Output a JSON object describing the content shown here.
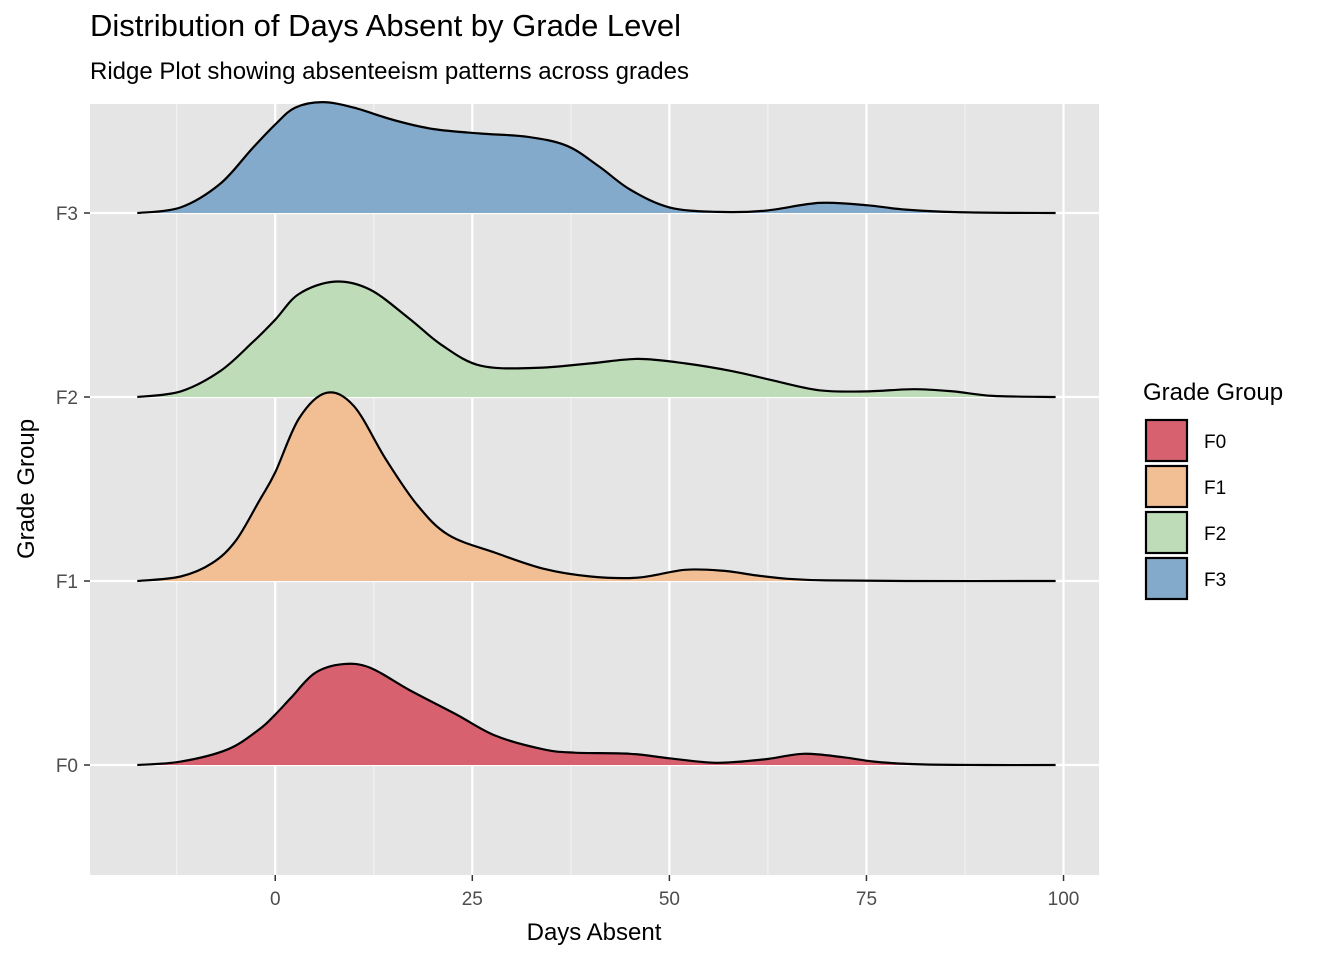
{
  "chart_data": {
    "type": "area",
    "subtype": "ridgeline",
    "title": "Distribution of Days Absent by Grade Level",
    "subtitle": "Ridge Plot showing absenteeism patterns across grades",
    "xlabel": "Days Absent",
    "ylabel": "Grade Group",
    "xlim": [
      -23.5,
      104.5
    ],
    "x_ticks": [
      0,
      25,
      50,
      75,
      100
    ],
    "x_tick_labels": [
      "0",
      "25",
      "50",
      "75",
      "100"
    ],
    "categories": [
      "F0",
      "F1",
      "F2",
      "F3"
    ],
    "grid": true,
    "legend": {
      "title": "Grade Group",
      "position": "right",
      "entries": [
        "F0",
        "F1",
        "F2",
        "F3"
      ]
    },
    "series": [
      {
        "name": "F0",
        "color": "#D7616F",
        "x": [
          -17.5,
          -12,
          -6,
          -2,
          0,
          2,
          5,
          8.5,
          12,
          17,
          23,
          28,
          34,
          38,
          45,
          50,
          56,
          62,
          67,
          72,
          76,
          82,
          90,
          99
        ],
        "y": [
          0,
          0.03,
          0.14,
          0.32,
          0.45,
          0.6,
          0.82,
          0.9,
          0.87,
          0.67,
          0.45,
          0.26,
          0.14,
          0.11,
          0.1,
          0.06,
          0.02,
          0.05,
          0.1,
          0.07,
          0.03,
          0.005,
          0,
          0
        ]
      },
      {
        "name": "F1",
        "color": "#F2BE94",
        "x": [
          -17.5,
          -12,
          -8,
          -5,
          -2,
          0,
          3,
          6.5,
          10,
          14,
          18,
          22,
          28,
          34,
          40,
          46,
          52,
          57,
          61,
          65,
          70,
          80,
          99
        ],
        "y": [
          0,
          0.04,
          0.16,
          0.36,
          0.72,
          0.97,
          1.45,
          1.68,
          1.56,
          1.09,
          0.68,
          0.41,
          0.25,
          0.11,
          0.04,
          0.03,
          0.1,
          0.09,
          0.05,
          0.02,
          0.005,
          0,
          0
        ]
      },
      {
        "name": "F2",
        "color": "#BEDCB8",
        "x": [
          -17.5,
          -12,
          -7,
          -3,
          0,
          3,
          7.5,
          12,
          17,
          21,
          26,
          33,
          40,
          46,
          52,
          58,
          63,
          69,
          75,
          81,
          86,
          91,
          99
        ],
        "y": [
          0,
          0.05,
          0.23,
          0.48,
          0.69,
          0.92,
          1.03,
          0.96,
          0.7,
          0.47,
          0.28,
          0.26,
          0.3,
          0.34,
          0.3,
          0.23,
          0.15,
          0.06,
          0.05,
          0.07,
          0.05,
          0.01,
          0
        ]
      },
      {
        "name": "F3",
        "color": "#84AACB",
        "x": [
          -17.5,
          -12,
          -7,
          -3,
          0,
          2.5,
          6,
          10,
          15,
          20,
          26,
          32,
          37,
          41,
          45,
          50,
          56,
          62,
          69,
          75,
          80,
          88,
          99
        ],
        "y": [
          0,
          0.05,
          0.26,
          0.57,
          0.79,
          0.94,
          0.99,
          0.94,
          0.83,
          0.75,
          0.71,
          0.68,
          0.6,
          0.42,
          0.21,
          0.05,
          0.01,
          0.02,
          0.09,
          0.07,
          0.03,
          0.005,
          0
        ]
      }
    ]
  }
}
